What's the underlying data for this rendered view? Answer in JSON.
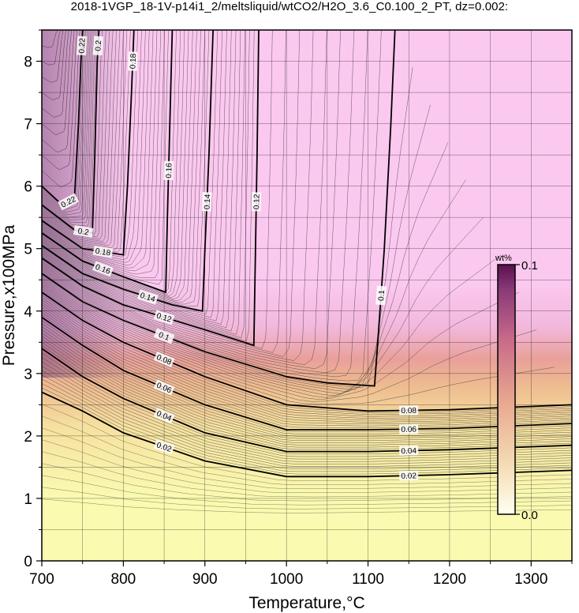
{
  "title": "2018-1VGP_18-1V-p14i1_2/meltsliquid/wtCO2/H2O_3.6_C0.100_2_PT, dz=0.002:",
  "chart_data": {
    "type": "contour",
    "xlabel": "Temperature,°C",
    "ylabel": "Pressure,x100MPa",
    "xlim": [
      700,
      1350
    ],
    "ylim": [
      0,
      8.5
    ],
    "xticks": [
      700,
      800,
      900,
      1000,
      1100,
      1200,
      1300
    ],
    "yticks": [
      0,
      1,
      2,
      3,
      4,
      5,
      6,
      7,
      8
    ],
    "grid": true,
    "contour_interval": 0.002,
    "major_contours": [
      {
        "level": 0.02,
        "label": "0.02",
        "points": [
          [
            700,
            2.7
          ],
          [
            750,
            2.4
          ],
          [
            800,
            2.05
          ],
          [
            900,
            1.6
          ],
          [
            1000,
            1.35
          ],
          [
            1100,
            1.35
          ],
          [
            1200,
            1.38
          ],
          [
            1350,
            1.45
          ]
        ]
      },
      {
        "level": 0.04,
        "label": "0.04",
        "points": [
          [
            700,
            3.4
          ],
          [
            750,
            2.95
          ],
          [
            800,
            2.6
          ],
          [
            900,
            2.05
          ],
          [
            1000,
            1.75
          ],
          [
            1100,
            1.75
          ],
          [
            1200,
            1.78
          ],
          [
            1350,
            1.85
          ]
        ]
      },
      {
        "level": 0.06,
        "label": "0.06",
        "points": [
          [
            700,
            3.9
          ],
          [
            750,
            3.45
          ],
          [
            800,
            3.05
          ],
          [
            900,
            2.5
          ],
          [
            1000,
            2.1
          ],
          [
            1100,
            2.1
          ],
          [
            1200,
            2.12
          ],
          [
            1350,
            2.2
          ]
        ]
      },
      {
        "level": 0.08,
        "label": "0.08",
        "points": [
          [
            700,
            4.3
          ],
          [
            750,
            3.85
          ],
          [
            800,
            3.5
          ],
          [
            900,
            2.95
          ],
          [
            1000,
            2.5
          ],
          [
            1100,
            2.4
          ],
          [
            1200,
            2.42
          ],
          [
            1350,
            2.5
          ]
        ]
      },
      {
        "level": 0.1,
        "label": "0.1",
        "points": [
          [
            700,
            4.6
          ],
          [
            750,
            4.15
          ],
          [
            800,
            3.85
          ],
          [
            900,
            3.35
          ],
          [
            1000,
            2.95
          ],
          [
            1050,
            2.85
          ],
          [
            1108,
            2.8
          ],
          [
            1112,
            3.5
          ],
          [
            1120,
            5.0
          ],
          [
            1128,
            7.0
          ],
          [
            1133,
            8.5
          ]
        ]
      },
      {
        "level": 0.12,
        "label": "0.12",
        "points": [
          [
            700,
            4.85
          ],
          [
            750,
            4.4
          ],
          [
            800,
            4.1
          ],
          [
            900,
            3.7
          ],
          [
            960,
            3.45
          ],
          [
            962,
            5.0
          ],
          [
            964,
            6.5
          ],
          [
            966,
            8.5
          ]
        ]
      },
      {
        "level": 0.14,
        "label": "0.14",
        "points": [
          [
            700,
            5.05
          ],
          [
            750,
            4.6
          ],
          [
            800,
            4.35
          ],
          [
            860,
            4.1
          ],
          [
            897,
            4.0
          ],
          [
            900,
            5.0
          ],
          [
            905,
            6.5
          ],
          [
            910,
            8.5
          ]
        ]
      },
      {
        "level": 0.16,
        "label": "0.16",
        "points": [
          [
            700,
            5.25
          ],
          [
            750,
            4.8
          ],
          [
            800,
            4.55
          ],
          [
            852,
            4.3
          ],
          [
            854,
            5.5
          ],
          [
            857,
            7.0
          ],
          [
            860,
            8.5
          ]
        ]
      },
      {
        "level": 0.18,
        "label": "0.18",
        "points": [
          [
            700,
            5.45
          ],
          [
            750,
            5.0
          ],
          [
            800,
            4.9
          ],
          [
            805,
            6.0
          ],
          [
            810,
            7.5
          ],
          [
            813,
            8.5
          ]
        ]
      },
      {
        "level": 0.2,
        "label": "0.2",
        "points": [
          [
            700,
            5.7
          ],
          [
            740,
            5.3
          ],
          [
            762,
            5.25
          ],
          [
            765,
            6.5
          ],
          [
            768,
            8.0
          ],
          [
            770,
            8.5
          ]
        ]
      },
      {
        "level": 0.22,
        "label": "0.22",
        "points": [
          [
            700,
            6.0
          ],
          [
            725,
            5.7
          ],
          [
            740,
            5.8
          ],
          [
            745,
            7.0
          ],
          [
            748,
            8.0
          ],
          [
            750,
            8.5
          ]
        ]
      }
    ],
    "colorbar": {
      "title": "wt%",
      "min_label": "0.0",
      "max_label": "0.1",
      "min": 0.0,
      "max": 0.1
    },
    "colormap": [
      "#fcfcaf",
      "#f6df9a",
      "#ecb08a",
      "#e68f85",
      "#d97fa0",
      "#c890c8",
      "#f6c6ec"
    ],
    "background_colors": {
      "low": "#fafab0",
      "high": "#fbc8ef"
    }
  }
}
